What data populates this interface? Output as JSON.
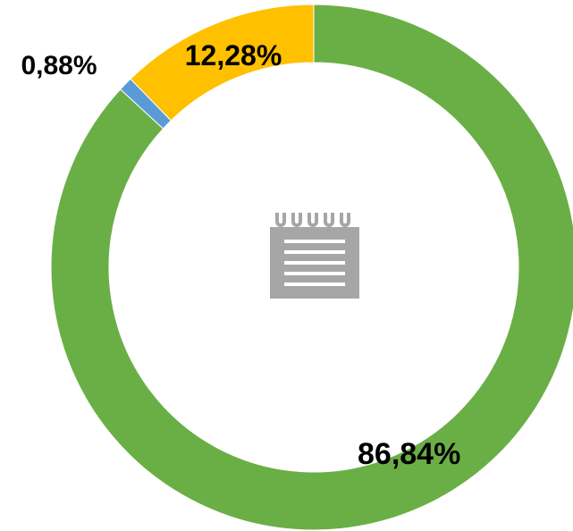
{
  "chart_data": {
    "type": "donut",
    "categories": [
      null,
      null,
      null
    ],
    "values": [
      86.84,
      0.88,
      12.28
    ],
    "value_labels": [
      "86,84%",
      "0,88%",
      "12,28%"
    ],
    "colors": [
      "#6aaf45",
      "#5b9bd5",
      "#ffc000"
    ]
  }
}
